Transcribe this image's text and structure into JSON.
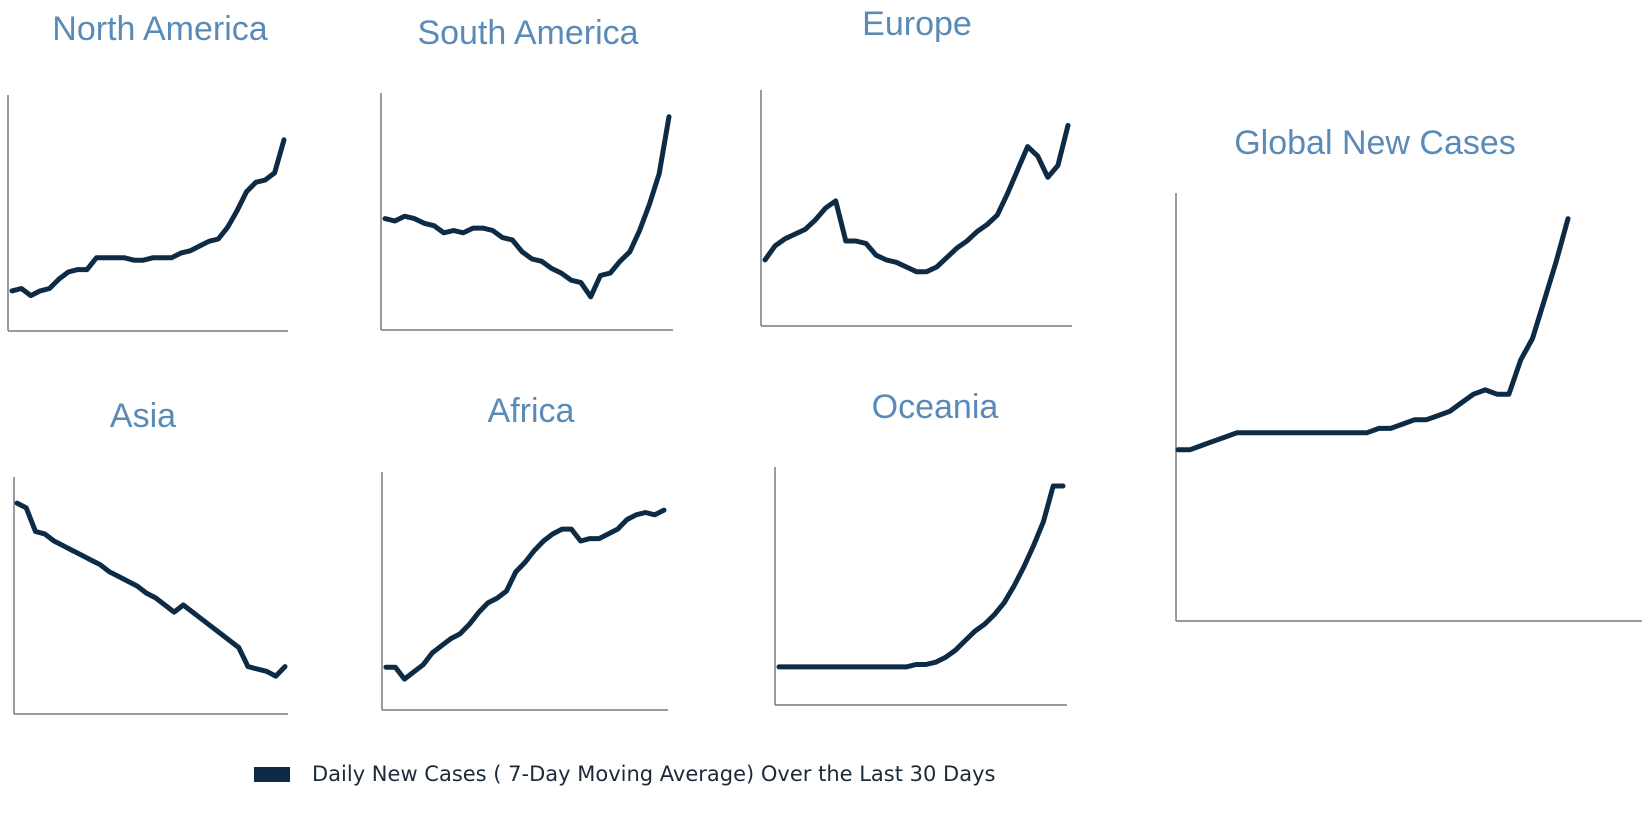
{
  "chart_data": [
    {
      "type": "line",
      "title": "North America",
      "color": "#0d2b45",
      "ylim": [
        0,
        100
      ],
      "values": [
        17,
        18,
        15,
        17,
        18,
        22,
        25,
        26,
        26,
        31,
        31,
        31,
        31,
        30,
        30,
        31,
        31,
        31,
        33,
        34,
        36,
        38,
        39,
        44,
        51,
        59,
        63,
        64,
        67,
        81
      ]
    },
    {
      "type": "line",
      "title": "South America",
      "color": "#0d2b45",
      "ylim": [
        0,
        100
      ],
      "values": [
        47,
        46,
        48,
        47,
        45,
        44,
        41,
        42,
        41,
        43,
        43,
        42,
        39,
        38,
        33,
        30,
        29,
        26,
        24,
        21,
        20,
        14,
        23,
        24,
        29,
        33,
        42,
        53,
        66,
        90
      ]
    },
    {
      "type": "line",
      "title": "Europe",
      "color": "#0d2b45",
      "ylim": [
        0,
        100
      ],
      "values": [
        28,
        34,
        37,
        39,
        41,
        45,
        50,
        53,
        36,
        36,
        35,
        30,
        28,
        27,
        25,
        23,
        23,
        25,
        29,
        33,
        36,
        40,
        43,
        47,
        56,
        66,
        76,
        72,
        63,
        68,
        85
      ]
    },
    {
      "type": "line",
      "title": "Asia",
      "color": "#0d2b45",
      "ylim": [
        0,
        100
      ],
      "values": [
        89,
        87,
        77,
        76,
        73,
        71,
        69,
        67,
        65,
        63,
        60,
        58,
        56,
        54,
        51,
        49,
        46,
        43,
        46,
        43,
        40,
        37,
        34,
        31,
        28,
        20,
        19,
        18,
        16,
        20
      ]
    },
    {
      "type": "line",
      "title": "Africa",
      "color": "#0d2b45",
      "ylim": [
        0,
        100
      ],
      "values": [
        18,
        18,
        13,
        16,
        19,
        24,
        27,
        30,
        32,
        36,
        41,
        45,
        47,
        50,
        58,
        62,
        67,
        71,
        74,
        76,
        76,
        71,
        72,
        72,
        74,
        76,
        80,
        82,
        83,
        82,
        84
      ]
    },
    {
      "type": "line",
      "title": "Oceania",
      "color": "#0d2b45",
      "ylim": [
        0,
        100
      ],
      "values": [
        16,
        16,
        16,
        16,
        16,
        16,
        16,
        16,
        16,
        16,
        16,
        16,
        16,
        16,
        17,
        17,
        18,
        20,
        23,
        27,
        31,
        34,
        38,
        43,
        50,
        58,
        67,
        77,
        92,
        92
      ]
    },
    {
      "type": "line",
      "title": "Global New Cases",
      "color": "#0d2b45",
      "ylim": [
        0,
        100
      ],
      "values": [
        40,
        40,
        41,
        42,
        43,
        44,
        44,
        44,
        44,
        44,
        44,
        44,
        44,
        44,
        44,
        44,
        44,
        45,
        45,
        46,
        47,
        47,
        48,
        49,
        51,
        53,
        54,
        53,
        53,
        61,
        66,
        75,
        84,
        94
      ]
    }
  ],
  "legend": {
    "label": "Daily New Cases ( 7-Day Moving Average) Over the Last 30 Days",
    "color": "#0d2b45"
  }
}
